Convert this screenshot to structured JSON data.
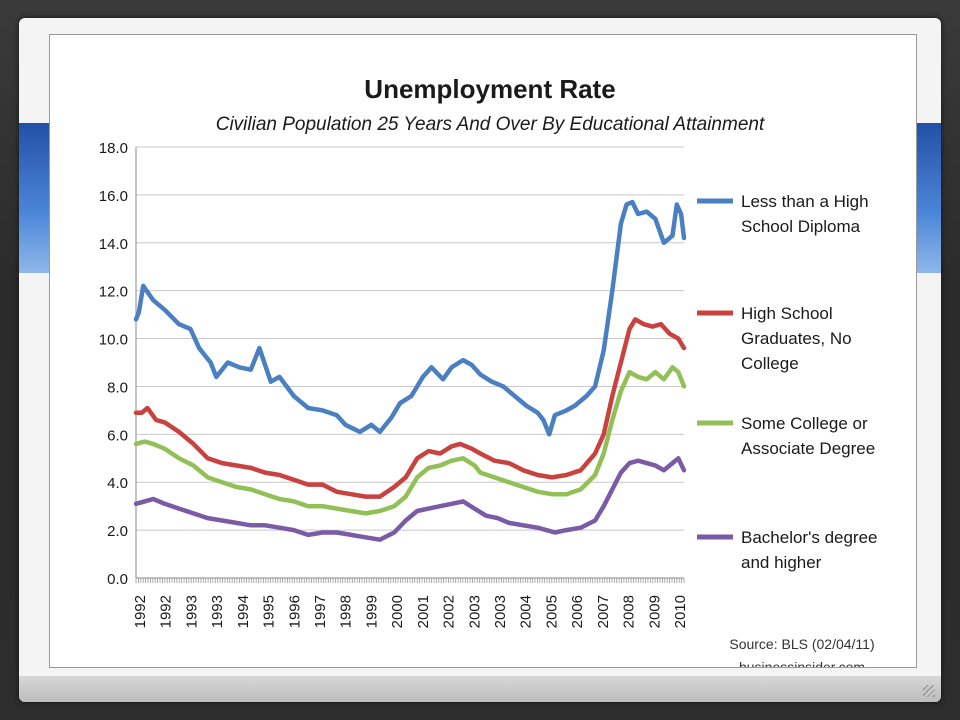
{
  "chart_data": {
    "type": "line",
    "title": "Unemployment Rate",
    "subtitle": "Civilian Population 25 Years And Over By Educational Attainment",
    "x_tick_labels": [
      "1992",
      "1992",
      "1993",
      "1993",
      "1994",
      "1995",
      "1996",
      "1997",
      "1998",
      "1999",
      "2000",
      "2001",
      "2002",
      "2003",
      "2003",
      "2004",
      "2005",
      "2006",
      "2007",
      "2008",
      "2009",
      "2010"
    ],
    "x_range": [
      1992.0,
      2011.1
    ],
    "ylim": [
      0,
      18
    ],
    "y_ticks": [
      "0.0",
      "2.0",
      "4.0",
      "6.0",
      "8.0",
      "10.0",
      "12.0",
      "14.0",
      "16.0",
      "18.0"
    ],
    "grid": "horizontal",
    "legend_position": "right",
    "series": [
      {
        "name": "Less than a High School Diploma",
        "color": "#4a7fc1",
        "points": [
          [
            1992.0,
            10.8
          ],
          [
            1992.1,
            11.1
          ],
          [
            1992.25,
            12.2
          ],
          [
            1992.6,
            11.6
          ],
          [
            1993.0,
            11.2
          ],
          [
            1993.5,
            10.6
          ],
          [
            1993.9,
            10.4
          ],
          [
            1994.2,
            9.6
          ],
          [
            1994.6,
            9.0
          ],
          [
            1994.8,
            8.4
          ],
          [
            1995.2,
            9.0
          ],
          [
            1995.6,
            8.8
          ],
          [
            1996.0,
            8.7
          ],
          [
            1996.3,
            9.6
          ],
          [
            1996.7,
            8.2
          ],
          [
            1997.0,
            8.4
          ],
          [
            1997.5,
            7.6
          ],
          [
            1998.0,
            7.1
          ],
          [
            1998.5,
            7.0
          ],
          [
            1999.0,
            6.8
          ],
          [
            1999.3,
            6.4
          ],
          [
            1999.8,
            6.1
          ],
          [
            2000.2,
            6.4
          ],
          [
            2000.5,
            6.1
          ],
          [
            2000.9,
            6.7
          ],
          [
            2001.2,
            7.3
          ],
          [
            2001.6,
            7.6
          ],
          [
            2002.0,
            8.4
          ],
          [
            2002.3,
            8.8
          ],
          [
            2002.7,
            8.3
          ],
          [
            2003.0,
            8.8
          ],
          [
            2003.4,
            9.1
          ],
          [
            2003.7,
            8.9
          ],
          [
            2004.0,
            8.5
          ],
          [
            2004.4,
            8.2
          ],
          [
            2004.8,
            8.0
          ],
          [
            2005.2,
            7.6
          ],
          [
            2005.6,
            7.2
          ],
          [
            2006.0,
            6.9
          ],
          [
            2006.2,
            6.6
          ],
          [
            2006.4,
            6.0
          ],
          [
            2006.6,
            6.8
          ],
          [
            2007.0,
            7.0
          ],
          [
            2007.3,
            7.2
          ],
          [
            2007.7,
            7.6
          ],
          [
            2008.0,
            8.0
          ],
          [
            2008.3,
            9.5
          ],
          [
            2008.6,
            12.0
          ],
          [
            2008.9,
            14.8
          ],
          [
            2009.1,
            15.6
          ],
          [
            2009.3,
            15.7
          ],
          [
            2009.5,
            15.2
          ],
          [
            2009.8,
            15.3
          ],
          [
            2010.1,
            15.0
          ],
          [
            2010.4,
            14.0
          ],
          [
            2010.7,
            14.3
          ],
          [
            2010.85,
            15.6
          ],
          [
            2011.0,
            15.2
          ],
          [
            2011.1,
            14.2
          ]
        ]
      },
      {
        "name": "High School Graduates, No College",
        "color": "#c84340",
        "points": [
          [
            1992.0,
            6.9
          ],
          [
            1992.2,
            6.9
          ],
          [
            1992.4,
            7.1
          ],
          [
            1992.7,
            6.6
          ],
          [
            1993.0,
            6.5
          ],
          [
            1993.5,
            6.1
          ],
          [
            1994.0,
            5.6
          ],
          [
            1994.5,
            5.0
          ],
          [
            1995.0,
            4.8
          ],
          [
            1995.5,
            4.7
          ],
          [
            1996.0,
            4.6
          ],
          [
            1996.5,
            4.4
          ],
          [
            1997.0,
            4.3
          ],
          [
            1997.5,
            4.1
          ],
          [
            1998.0,
            3.9
          ],
          [
            1998.5,
            3.9
          ],
          [
            1999.0,
            3.6
          ],
          [
            1999.5,
            3.5
          ],
          [
            2000.0,
            3.4
          ],
          [
            2000.5,
            3.4
          ],
          [
            2001.0,
            3.8
          ],
          [
            2001.4,
            4.2
          ],
          [
            2001.8,
            5.0
          ],
          [
            2002.2,
            5.3
          ],
          [
            2002.6,
            5.2
          ],
          [
            2003.0,
            5.5
          ],
          [
            2003.3,
            5.6
          ],
          [
            2003.7,
            5.4
          ],
          [
            2004.0,
            5.2
          ],
          [
            2004.5,
            4.9
          ],
          [
            2005.0,
            4.8
          ],
          [
            2005.5,
            4.5
          ],
          [
            2006.0,
            4.3
          ],
          [
            2006.5,
            4.2
          ],
          [
            2007.0,
            4.3
          ],
          [
            2007.5,
            4.5
          ],
          [
            2008.0,
            5.2
          ],
          [
            2008.3,
            6.0
          ],
          [
            2008.6,
            7.6
          ],
          [
            2008.9,
            9.0
          ],
          [
            2009.2,
            10.4
          ],
          [
            2009.4,
            10.8
          ],
          [
            2009.7,
            10.6
          ],
          [
            2010.0,
            10.5
          ],
          [
            2010.3,
            10.6
          ],
          [
            2010.6,
            10.2
          ],
          [
            2010.9,
            10.0
          ],
          [
            2011.1,
            9.6
          ]
        ]
      },
      {
        "name": "Some College or Associate Degree",
        "color": "#92c057",
        "points": [
          [
            1992.0,
            5.6
          ],
          [
            1992.3,
            5.7
          ],
          [
            1992.6,
            5.6
          ],
          [
            1993.0,
            5.4
          ],
          [
            1993.5,
            5.0
          ],
          [
            1994.0,
            4.7
          ],
          [
            1994.5,
            4.2
          ],
          [
            1995.0,
            4.0
          ],
          [
            1995.5,
            3.8
          ],
          [
            1996.0,
            3.7
          ],
          [
            1996.5,
            3.5
          ],
          [
            1997.0,
            3.3
          ],
          [
            1997.5,
            3.2
          ],
          [
            1998.0,
            3.0
          ],
          [
            1998.5,
            3.0
          ],
          [
            1999.0,
            2.9
          ],
          [
            1999.5,
            2.8
          ],
          [
            2000.0,
            2.7
          ],
          [
            2000.5,
            2.8
          ],
          [
            2001.0,
            3.0
          ],
          [
            2001.4,
            3.4
          ],
          [
            2001.8,
            4.2
          ],
          [
            2002.2,
            4.6
          ],
          [
            2002.6,
            4.7
          ],
          [
            2003.0,
            4.9
          ],
          [
            2003.4,
            5.0
          ],
          [
            2003.8,
            4.7
          ],
          [
            2004.0,
            4.4
          ],
          [
            2004.5,
            4.2
          ],
          [
            2005.0,
            4.0
          ],
          [
            2005.5,
            3.8
          ],
          [
            2006.0,
            3.6
          ],
          [
            2006.5,
            3.5
          ],
          [
            2007.0,
            3.5
          ],
          [
            2007.5,
            3.7
          ],
          [
            2008.0,
            4.3
          ],
          [
            2008.3,
            5.2
          ],
          [
            2008.6,
            6.6
          ],
          [
            2008.9,
            7.8
          ],
          [
            2009.2,
            8.6
          ],
          [
            2009.5,
            8.4
          ],
          [
            2009.8,
            8.3
          ],
          [
            2010.1,
            8.6
          ],
          [
            2010.4,
            8.3
          ],
          [
            2010.7,
            8.8
          ],
          [
            2010.9,
            8.6
          ],
          [
            2011.1,
            8.0
          ]
        ]
      },
      {
        "name": "Bachelor's degree and higher",
        "color": "#7b5aa6",
        "points": [
          [
            1992.0,
            3.1
          ],
          [
            1992.3,
            3.2
          ],
          [
            1992.6,
            3.3
          ],
          [
            1993.0,
            3.1
          ],
          [
            1993.5,
            2.9
          ],
          [
            1994.0,
            2.7
          ],
          [
            1994.5,
            2.5
          ],
          [
            1995.0,
            2.4
          ],
          [
            1995.5,
            2.3
          ],
          [
            1996.0,
            2.2
          ],
          [
            1996.5,
            2.2
          ],
          [
            1997.0,
            2.1
          ],
          [
            1997.5,
            2.0
          ],
          [
            1998.0,
            1.8
          ],
          [
            1998.5,
            1.9
          ],
          [
            1999.0,
            1.9
          ],
          [
            1999.5,
            1.8
          ],
          [
            2000.0,
            1.7
          ],
          [
            2000.5,
            1.6
          ],
          [
            2001.0,
            1.9
          ],
          [
            2001.4,
            2.4
          ],
          [
            2001.8,
            2.8
          ],
          [
            2002.2,
            2.9
          ],
          [
            2002.6,
            3.0
          ],
          [
            2003.0,
            3.1
          ],
          [
            2003.4,
            3.2
          ],
          [
            2003.8,
            2.9
          ],
          [
            2004.2,
            2.6
          ],
          [
            2004.6,
            2.5
          ],
          [
            2005.0,
            2.3
          ],
          [
            2005.5,
            2.2
          ],
          [
            2006.0,
            2.1
          ],
          [
            2006.3,
            2.0
          ],
          [
            2006.6,
            1.9
          ],
          [
            2007.0,
            2.0
          ],
          [
            2007.5,
            2.1
          ],
          [
            2008.0,
            2.4
          ],
          [
            2008.3,
            3.0
          ],
          [
            2008.6,
            3.7
          ],
          [
            2008.9,
            4.4
          ],
          [
            2009.2,
            4.8
          ],
          [
            2009.5,
            4.9
          ],
          [
            2009.8,
            4.8
          ],
          [
            2010.1,
            4.7
          ],
          [
            2010.4,
            4.5
          ],
          [
            2010.7,
            4.8
          ],
          [
            2010.9,
            5.0
          ],
          [
            2011.1,
            4.5
          ]
        ]
      }
    ],
    "source": "Source: BLS (02/04/11)",
    "source_site": "businessinsider.com"
  },
  "legend": [
    {
      "lines": [
        "Less than a High",
        "School Diploma"
      ],
      "color": "#4a7fc1"
    },
    {
      "lines": [
        "High School",
        "Graduates, No",
        "College"
      ],
      "color": "#c84340"
    },
    {
      "lines": [
        "Some College or",
        "Associate Degree"
      ],
      "color": "#92c057"
    },
    {
      "lines": [
        "Bachelor's degree",
        "and higher"
      ],
      "color": "#7b5aa6"
    }
  ]
}
